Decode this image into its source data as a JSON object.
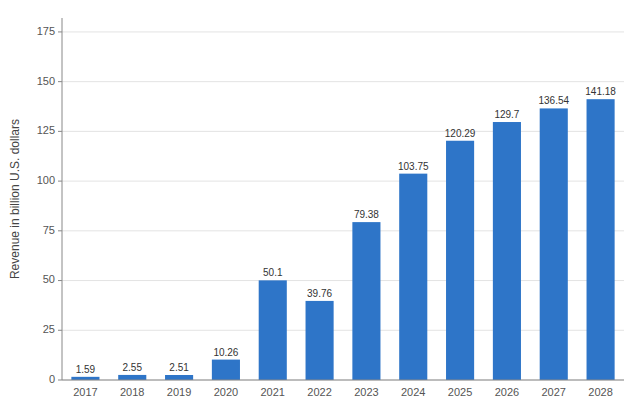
{
  "chart_data": {
    "type": "bar",
    "ylabel": "Revenue in billion U.S. dollars",
    "categories": [
      "2017",
      "2018",
      "2019",
      "2020",
      "2021",
      "2022",
      "2023",
      "2024",
      "2025",
      "2026",
      "2027",
      "2028"
    ],
    "values": [
      1.59,
      2.55,
      2.51,
      10.26,
      50.1,
      39.76,
      79.38,
      103.75,
      120.29,
      129.7,
      136.54,
      141.18
    ],
    "color": "#2e75c8",
    "ylim": [
      0,
      182
    ],
    "yticks": [
      0,
      25,
      50,
      75,
      100,
      125,
      150,
      175
    ],
    "grid": true,
    "data_labels": true
  }
}
